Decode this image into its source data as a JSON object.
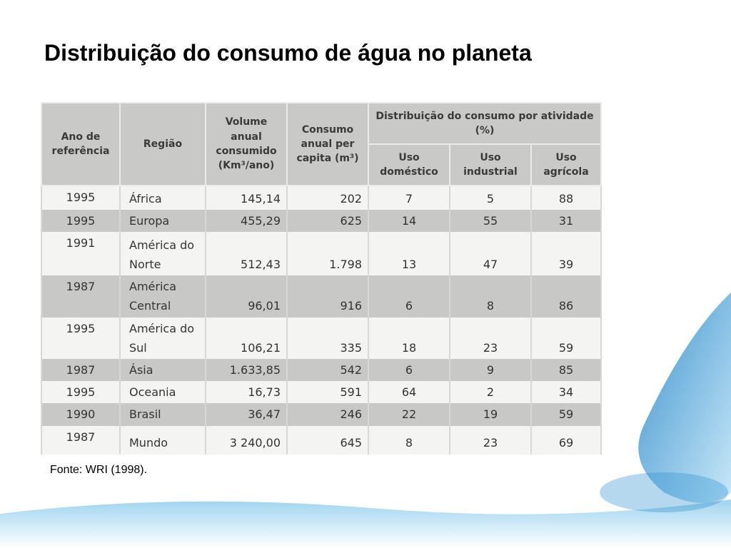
{
  "title": "Distribuição do consumo de água no planeta",
  "table": {
    "headers": {
      "year": "Ano de referência",
      "region": "Região",
      "volume": "Volume anual consumido (Km³/ano)",
      "per_capita": "Consumo anual per capita (m³)",
      "distribution": "Distribuição do consumo por atividade (%)",
      "domestic": "Uso doméstico",
      "industrial": "Uso industrial",
      "agricultural": "Uso agrícola"
    },
    "rows": [
      [
        "1995",
        "África",
        "145,14",
        "202",
        "7",
        "5",
        "88"
      ],
      [
        "1995",
        "Europa",
        "455,29",
        "625",
        "14",
        "55",
        "31"
      ],
      [
        "1991",
        "América do Norte",
        "512,43",
        "1.798",
        "13",
        "47",
        "39"
      ],
      [
        "1987",
        "América Central",
        "96,01",
        "916",
        "6",
        "8",
        "86"
      ],
      [
        "1995",
        "América do Sul",
        "106,21",
        "335",
        "18",
        "23",
        "59"
      ],
      [
        "1987",
        "Ásia",
        "1.633,85",
        "542",
        "6",
        "9",
        "85"
      ],
      [
        "1995",
        "Oceania",
        "16,73",
        "591",
        "64",
        "2",
        "34"
      ],
      [
        "1990",
        "Brasil",
        "36,47",
        "246",
        "22",
        "19",
        "59"
      ],
      [
        "1987",
        "Mundo",
        "3 240,00",
        "645",
        "8",
        "23",
        "69"
      ]
    ]
  },
  "source": "Fonte: WRI (1998)."
}
